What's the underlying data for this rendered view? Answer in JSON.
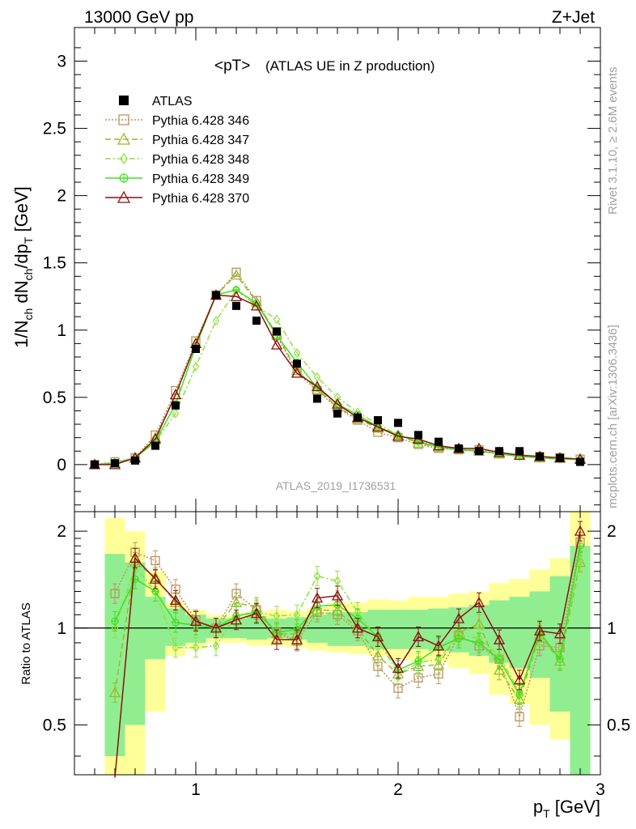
{
  "header": {
    "left": "13000 GeV pp",
    "right": "Z+Jet"
  },
  "side_labels": {
    "rivet": "Rivet 3.1.10, ≥ 2.6M events",
    "mcplots": "mcplots.cern.ch [arXiv:1306.3436]"
  },
  "analysis_label": "ATLAS_2019_I1736531",
  "colors": {
    "data": "#000000",
    "p346": "#b8955a",
    "p347": "#9ab82a",
    "p348": "#90e040",
    "p349": "#40e020",
    "p370": "#8b1010",
    "band_inner": "#90ee90",
    "band_outer": "#ffff99"
  },
  "chart_data": [
    {
      "type": "line",
      "title": "<pT>",
      "subtitle": "(ATLAS UE in Z production)",
      "ylabel": "1/N_ch dN_ch/dp_T [GeV]",
      "xlabel": "",
      "xlim": [
        0.4,
        3.0
      ],
      "ylim": [
        -0.35,
        3.25
      ],
      "x_ticks": [
        1,
        2,
        3
      ],
      "y_ticks": [
        0,
        0.5,
        1,
        1.5,
        2,
        2.5,
        3
      ],
      "y_tick_labels": [
        "0",
        "0.5",
        "1",
        "1.5",
        "2",
        "2.5",
        "3"
      ],
      "legend_position": "top-left",
      "x": [
        0.5,
        0.6,
        0.7,
        0.8,
        0.9,
        1.0,
        1.1,
        1.2,
        1.3,
        1.4,
        1.5,
        1.6,
        1.7,
        1.8,
        1.9,
        2.0,
        2.1,
        2.2,
        2.3,
        2.4,
        2.5,
        2.6,
        2.7,
        2.8,
        2.9
      ],
      "series": [
        {
          "name": "ATLAS",
          "key": "data",
          "marker": "square-filled",
          "values": [
            0.0,
            0.01,
            0.03,
            0.14,
            0.44,
            0.86,
            1.26,
            1.18,
            1.07,
            0.99,
            0.75,
            0.49,
            0.38,
            0.35,
            0.33,
            0.31,
            0.22,
            0.17,
            0.12,
            0.1,
            0.1,
            0.1,
            0.06,
            0.05,
            0.02
          ]
        },
        {
          "name": "Pythia 6.428 346",
          "key": "p346",
          "marker": "square-open",
          "dash": "2,2",
          "values": [
            0.0,
            0.02,
            0.05,
            0.22,
            0.55,
            0.92,
            1.26,
            1.43,
            1.22,
            0.96,
            0.68,
            0.55,
            0.42,
            0.33,
            0.24,
            0.2,
            0.15,
            0.12,
            0.11,
            0.11,
            0.08,
            0.07,
            0.06,
            0.05,
            0.04
          ]
        },
        {
          "name": "Pythia 6.428 347",
          "key": "p347",
          "marker": "triangle-open",
          "dash": "7,4",
          "values": [
            0.0,
            0.01,
            0.05,
            0.2,
            0.52,
            0.9,
            1.26,
            1.41,
            1.21,
            0.97,
            0.7,
            0.56,
            0.43,
            0.34,
            0.27,
            0.22,
            0.16,
            0.13,
            0.12,
            0.1,
            0.08,
            0.07,
            0.05,
            0.05,
            0.04
          ]
        },
        {
          "name": "Pythia 6.428 348",
          "key": "p348",
          "marker": "diamond-open",
          "dash": "7,3,2,3",
          "values": [
            0.0,
            0.01,
            0.05,
            0.17,
            0.38,
            0.73,
            1.07,
            1.3,
            1.18,
            1.08,
            0.83,
            0.65,
            0.5,
            0.39,
            0.3,
            0.22,
            0.17,
            0.14,
            0.11,
            0.1,
            0.08,
            0.07,
            0.06,
            0.05,
            0.04
          ]
        },
        {
          "name": "Pythia 6.428 349",
          "key": "p349",
          "marker": "circle-cross",
          "dash": "",
          "values": [
            0.0,
            0.01,
            0.05,
            0.17,
            0.45,
            0.88,
            1.26,
            1.3,
            1.2,
            0.96,
            0.76,
            0.57,
            0.45,
            0.37,
            0.28,
            0.22,
            0.17,
            0.13,
            0.11,
            0.1,
            0.08,
            0.06,
            0.05,
            0.04,
            0.04
          ]
        },
        {
          "name": "Pythia 6.428 370",
          "key": "p370",
          "marker": "triangle-open",
          "dash": "",
          "values": [
            0.0,
            0.0,
            0.05,
            0.19,
            0.52,
            0.9,
            1.26,
            1.25,
            1.18,
            0.89,
            0.68,
            0.58,
            0.45,
            0.35,
            0.28,
            0.21,
            0.19,
            0.14,
            0.12,
            0.12,
            0.09,
            0.07,
            0.06,
            0.05,
            0.04
          ]
        }
      ]
    },
    {
      "type": "line",
      "title": "",
      "xlabel": "p_T [GeV]",
      "ylabel": "Ratio to ATLAS",
      "xlim": [
        0.4,
        3.0
      ],
      "ylim": [
        0.35,
        2.3
      ],
      "x_ticks": [
        1,
        2,
        3
      ],
      "y_ticks": [
        0.5,
        1,
        2
      ],
      "y_tick_labels": [
        "0.5",
        "1",
        "2"
      ],
      "reference_line": 1,
      "x": [
        0.5,
        0.6,
        0.7,
        0.8,
        0.9,
        1.0,
        1.1,
        1.2,
        1.3,
        1.4,
        1.5,
        1.6,
        1.7,
        1.8,
        1.9,
        2.0,
        2.1,
        2.2,
        2.3,
        2.4,
        2.5,
        2.6,
        2.7,
        2.8,
        2.9
      ],
      "band_inner": [
        [
          1.0,
          1.0
        ],
        [
          0.4,
          1.7
        ],
        [
          0.5,
          1.6
        ],
        [
          0.8,
          1.25
        ],
        [
          0.88,
          1.15
        ],
        [
          0.9,
          1.1
        ],
        [
          0.93,
          1.07
        ],
        [
          0.93,
          1.07
        ],
        [
          0.92,
          1.09
        ],
        [
          0.93,
          1.07
        ],
        [
          0.92,
          1.08
        ],
        [
          0.9,
          1.1
        ],
        [
          0.88,
          1.12
        ],
        [
          0.88,
          1.12
        ],
        [
          0.86,
          1.14
        ],
        [
          0.86,
          1.14
        ],
        [
          0.86,
          1.14
        ],
        [
          0.85,
          1.15
        ],
        [
          0.84,
          1.16
        ],
        [
          0.82,
          1.18
        ],
        [
          0.78,
          1.22
        ],
        [
          0.75,
          1.25
        ],
        [
          0.7,
          1.3
        ],
        [
          0.55,
          1.45
        ],
        [
          0.35,
          1.8
        ]
      ],
      "band_outer": [
        [
          1.0,
          1.0
        ],
        [
          0.3,
          2.2
        ],
        [
          0.35,
          2.0
        ],
        [
          0.55,
          1.5
        ],
        [
          0.82,
          1.2
        ],
        [
          0.86,
          1.14
        ],
        [
          0.9,
          1.1
        ],
        [
          0.9,
          1.1
        ],
        [
          0.88,
          1.12
        ],
        [
          0.88,
          1.14
        ],
        [
          0.87,
          1.13
        ],
        [
          0.85,
          1.16
        ],
        [
          0.84,
          1.2
        ],
        [
          0.83,
          1.2
        ],
        [
          0.82,
          1.23
        ],
        [
          0.8,
          1.22
        ],
        [
          0.79,
          1.25
        ],
        [
          0.78,
          1.25
        ],
        [
          0.75,
          1.28
        ],
        [
          0.72,
          1.3
        ],
        [
          0.62,
          1.38
        ],
        [
          0.58,
          1.42
        ],
        [
          0.5,
          1.52
        ],
        [
          0.45,
          1.65
        ],
        [
          0.35,
          2.3
        ]
      ],
      "series": [
        {
          "name": "Pythia 6.428 346",
          "key": "p346",
          "marker": "square-open",
          "dash": "2,2",
          "values": [
            null,
            1.28,
            1.72,
            1.62,
            1.32,
            1.06,
            1.0,
            1.28,
            1.14,
            0.97,
            0.91,
            1.12,
            1.1,
            0.98,
            0.76,
            0.65,
            0.7,
            0.72,
            0.95,
            0.88,
            0.8,
            0.53,
            0.88,
            0.87,
            1.85
          ]
        },
        {
          "name": "Pythia 6.428 347",
          "key": "p347",
          "marker": "triangle-open",
          "dash": "7,4",
          "values": [
            null,
            0.63,
            1.6,
            1.44,
            1.2,
            1.05,
            1.0,
            1.2,
            1.16,
            0.96,
            0.96,
            1.14,
            1.13,
            1.0,
            0.82,
            0.72,
            0.76,
            0.77,
            0.97,
            1.03,
            0.74,
            0.6,
            0.95,
            0.79,
            1.6
          ]
        },
        {
          "name": "Pythia 6.428 348",
          "key": "p348",
          "marker": "diamond-open",
          "dash": "7,3,2,3",
          "values": [
            null,
            1.0,
            1.55,
            1.3,
            0.87,
            0.87,
            0.88,
            1.1,
            1.12,
            1.09,
            1.1,
            1.45,
            1.4,
            1.12,
            0.92,
            0.72,
            0.78,
            0.8,
            0.95,
            0.93,
            0.82,
            0.63,
            0.94,
            0.82,
            1.62
          ]
        },
        {
          "name": "Pythia 6.428 349",
          "key": "p349",
          "marker": "circle-cross",
          "dash": "",
          "values": [
            null,
            1.05,
            1.42,
            1.3,
            1.04,
            1.02,
            1.0,
            1.09,
            1.12,
            0.97,
            0.99,
            1.17,
            1.18,
            1.07,
            0.94,
            0.74,
            0.79,
            0.87,
            0.93,
            0.9,
            0.8,
            0.62,
            0.97,
            0.8,
            1.8
          ]
        },
        {
          "name": "Pythia 6.428 370",
          "key": "p370",
          "marker": "triangle-open",
          "dash": "",
          "values": [
            null,
            0.2,
            1.65,
            1.42,
            1.22,
            1.05,
            1.0,
            1.06,
            1.11,
            0.92,
            0.92,
            1.24,
            1.26,
            1.0,
            0.94,
            0.75,
            0.94,
            0.88,
            1.07,
            1.2,
            0.92,
            0.69,
            0.98,
            0.96,
            2.0
          ]
        }
      ]
    }
  ],
  "legend": [
    {
      "label": "ATLAS",
      "key": "data",
      "marker": "square-filled",
      "dash": ""
    },
    {
      "label": "Pythia 6.428 346",
      "key": "p346",
      "marker": "square-open",
      "dash": "2,2"
    },
    {
      "label": "Pythia 6.428 347",
      "key": "p347",
      "marker": "triangle-open",
      "dash": "7,4"
    },
    {
      "label": "Pythia 6.428 348",
      "key": "p348",
      "marker": "diamond-open",
      "dash": "7,3,2,3"
    },
    {
      "label": "Pythia 6.428 349",
      "key": "p349",
      "marker": "circle-cross",
      "dash": ""
    },
    {
      "label": "Pythia 6.428 370",
      "key": "p370",
      "marker": "triangle-open",
      "dash": ""
    }
  ]
}
